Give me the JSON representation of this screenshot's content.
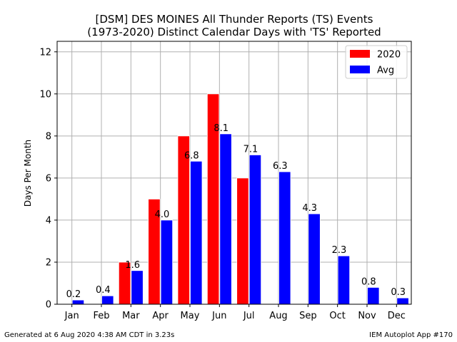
{
  "chart_data": {
    "type": "bar",
    "title_line1": "[DSM] DES MOINES All Thunder Reports (TS) Events",
    "title_line2": "(1973-2020) Distinct Calendar Days with 'TS' Reported",
    "xlabel": "",
    "ylabel": "Days Per Month",
    "ylim": [
      0,
      12.5
    ],
    "yticks": [
      0,
      2,
      4,
      6,
      8,
      10,
      12
    ],
    "categories": [
      "Jan",
      "Feb",
      "Mar",
      "Apr",
      "May",
      "Jun",
      "Jul",
      "Aug",
      "Sep",
      "Oct",
      "Nov",
      "Dec"
    ],
    "series": [
      {
        "name": "2020",
        "color": "#ff0000",
        "values": [
          0,
          0,
          2,
          5,
          8,
          10,
          6,
          0,
          0,
          0,
          0,
          0
        ]
      },
      {
        "name": "Avg",
        "color": "#0000ff",
        "values": [
          0.2,
          0.4,
          1.6,
          4.0,
          6.8,
          8.1,
          7.1,
          6.3,
          4.3,
          2.3,
          0.8,
          0.3
        ],
        "labels": [
          "0.2",
          "0.4",
          "1.6",
          "4.0",
          "6.8",
          "8.1",
          "7.1",
          "6.3",
          "4.3",
          "2.3",
          "0.8",
          "0.3"
        ]
      }
    ],
    "grid": true,
    "legend": "top-right"
  },
  "footer": {
    "left": "Generated at 6 Aug 2020 4:38 AM CDT in 3.23s",
    "right": "IEM Autoplot App #170"
  }
}
